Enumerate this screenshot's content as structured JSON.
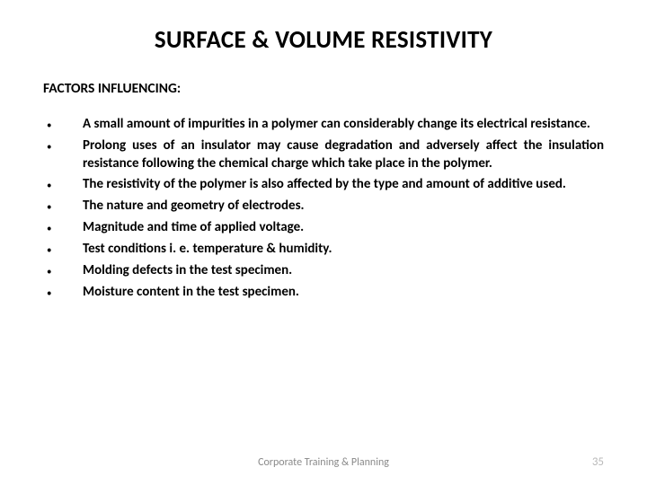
{
  "title": "SURFACE & VOLUME RESISTIVITY",
  "subtitle": "FACTORS INFLUENCING:",
  "bullets": [
    "A small amount of impurities in a polymer can considerably change its electrical resistance.",
    "Prolong uses of an insulator may cause degradation and adversely affect the insulation resistance following the chemical charge which take place in the polymer.",
    "The resistivity of the polymer is also affected by the type and amount of additive used.",
    "The nature and geometry of electrodes.",
    "Magnitude and time of applied voltage.",
    "Test conditions i. e. temperature & humidity.",
    "Molding defects in the test specimen.",
    "Moisture content in the test specimen."
  ],
  "footer": "Corporate Training & Planning",
  "page_number": "35",
  "colors": {
    "text": "#000000",
    "footer": "#8a8a8a",
    "page_num": "#b9b9b9",
    "background": "#ffffff"
  },
  "fonts": {
    "title_size": 27,
    "subtitle_size": 15.5,
    "body_size": 15,
    "footer_size": 12
  }
}
